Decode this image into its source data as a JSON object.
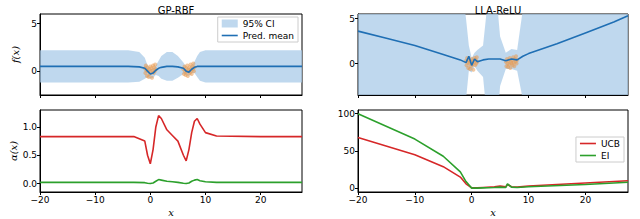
{
  "chart_data": [
    {
      "type": "line",
      "title": "GP-RBF",
      "ylabel": "f(x)",
      "xlim": [
        -20,
        27.5
      ],
      "xticks": [
        {
          "value": -20,
          "label": "−20"
        },
        {
          "value": -10,
          "label": "−10"
        },
        0,
        10,
        20
      ],
      "ylim": [
        -2.5,
        6
      ],
      "yticks": [
        0,
        5
      ],
      "grid": false,
      "tick_labels": "y",
      "legend": "upper right",
      "series": [
        {
          "name": "95% CI",
          "type": "band",
          "color": "#a9cbe8",
          "x": [
            -20,
            -10,
            -4,
            -2,
            -1,
            -0.5,
            0,
            0.5,
            1,
            1.5,
            2,
            3,
            4,
            5,
            6,
            6.5,
            7,
            7.5,
            8,
            8.5,
            9,
            10,
            12,
            20,
            27.5
          ],
          "lower": [
            -1.2,
            -1.2,
            -1.2,
            -1.1,
            -0.8,
            -0.6,
            -0.8,
            -0.7,
            -0.4,
            -0.5,
            -0.8,
            -1.0,
            -1.0,
            -0.7,
            -0.3,
            -0.4,
            -0.5,
            -0.2,
            -0.2,
            -0.6,
            -1.0,
            -1.2,
            -1.2,
            -1.2,
            -1.2
          ],
          "upper": [
            2.2,
            2.2,
            2.2,
            2.0,
            1.4,
            0.6,
            0.2,
            0.3,
            0.6,
            1.1,
            1.6,
            2.0,
            2.0,
            1.6,
            0.9,
            0.4,
            0.3,
            0.6,
            1.0,
            1.6,
            2.0,
            2.2,
            2.2,
            2.2,
            2.2
          ]
        },
        {
          "type": "scatter",
          "color": "#e89a52",
          "x": [
            -1.0,
            -0.9,
            -0.8,
            -0.7,
            -0.6,
            -0.5,
            -0.4,
            -0.3,
            -0.2,
            -0.1,
            0.0,
            0.1,
            0.2,
            0.3,
            0.4,
            0.5,
            0.6,
            0.7,
            0.8,
            0.9,
            1.0,
            6.0,
            6.1,
            6.2,
            6.3,
            6.4,
            6.5,
            6.6,
            6.7,
            6.8,
            6.9,
            7.0,
            7.1,
            7.2,
            7.3,
            7.4,
            7.5,
            7.6,
            7.7,
            7.8,
            7.9,
            8.0
          ],
          "values": [
            0.3,
            -0.2,
            0.6,
            0.1,
            -0.5,
            0.4,
            0.0,
            -0.6,
            0.2,
            -0.3,
            0.5,
            -0.1,
            0.3,
            -0.7,
            0.1,
            0.6,
            -0.2,
            0.4,
            0.0,
            0.7,
            0.2,
            0.2,
            -0.3,
            0.5,
            0.0,
            -0.4,
            0.3,
            -0.1,
            0.6,
            -0.5,
            0.2,
            0.0,
            0.4,
            -0.2,
            0.7,
            0.1,
            -0.3,
            0.5,
            0.2,
            0.8,
            0.0,
            0.4
          ]
        },
        {
          "name": "Pred. mean",
          "type": "line",
          "color": "#1f6fb4",
          "x": [
            -20,
            -10,
            -4,
            -2,
            -1,
            -0.5,
            0,
            0.5,
            1,
            1.5,
            2,
            3,
            4,
            5,
            6,
            6.5,
            7,
            7.5,
            8,
            8.5,
            9,
            10,
            12,
            20,
            27.5
          ],
          "values": [
            0.5,
            0.5,
            0.5,
            0.45,
            0.3,
            0.0,
            -0.3,
            -0.2,
            0.1,
            0.3,
            0.4,
            0.5,
            0.5,
            0.45,
            0.3,
            0.0,
            -0.1,
            0.2,
            0.4,
            0.5,
            0.5,
            0.5,
            0.5,
            0.5,
            0.5
          ]
        }
      ]
    },
    {
      "type": "line",
      "title": "LLA-ReLU",
      "xlim": [
        -20,
        27.5
      ],
      "xticks": [
        {
          "value": -20,
          "label": "−20"
        },
        {
          "value": -10,
          "label": "−10"
        },
        0,
        10,
        20
      ],
      "ylim": [
        -3.5,
        5.5
      ],
      "yticks": [
        0,
        5
      ],
      "grid": false,
      "tick_labels": "y",
      "series": [
        {
          "type": "band",
          "color": "#a9cbe8",
          "x": [
            -20,
            -15,
            -10,
            -5,
            -2,
            -1,
            -0.5,
            0,
            0.5,
            1,
            2,
            3,
            4,
            5,
            6,
            7,
            8,
            9,
            10,
            15,
            20,
            25,
            27.5
          ],
          "lower": [
            -35,
            -30,
            -25,
            -15,
            -8,
            -4,
            -0.8,
            -1.0,
            -0.3,
            -0.8,
            -1.5,
            -8,
            -10,
            -2.5,
            -0.6,
            -0.6,
            -0.8,
            -4,
            -10,
            -20,
            -30,
            -40,
            -45
          ],
          "upper": [
            40,
            35,
            30,
            20,
            10,
            5,
            2,
            0.6,
            1.2,
            1.5,
            2,
            8,
            10,
            3,
            1.2,
            1.6,
            1.5,
            6,
            12,
            25,
            35,
            45,
            50
          ]
        },
        {
          "type": "scatter",
          "color": "#e89a52",
          "x": [
            -1.0,
            -0.9,
            -0.8,
            -0.7,
            -0.6,
            -0.5,
            -0.4,
            -0.3,
            -0.2,
            -0.1,
            0.0,
            0.1,
            0.2,
            0.3,
            0.4,
            0.5,
            0.6,
            0.7,
            0.8,
            0.9,
            1.0,
            6.0,
            6.1,
            6.2,
            6.3,
            6.4,
            6.5,
            6.6,
            6.7,
            6.8,
            6.9,
            7.0,
            7.1,
            7.2,
            7.3,
            7.4,
            7.5,
            7.6,
            7.7,
            7.8,
            7.9,
            8.0
          ],
          "values": [
            0.3,
            -0.2,
            0.6,
            0.1,
            -0.5,
            0.4,
            0.0,
            -0.6,
            0.2,
            -0.3,
            0.5,
            -0.1,
            0.3,
            -0.7,
            0.1,
            0.6,
            -0.2,
            0.4,
            0.0,
            0.7,
            0.2,
            0.2,
            -0.3,
            0.5,
            0.0,
            -0.4,
            0.3,
            -0.1,
            0.6,
            -0.5,
            0.2,
            0.0,
            0.4,
            -0.2,
            0.7,
            0.1,
            -0.3,
            0.5,
            0.2,
            0.8,
            0.0,
            0.4
          ]
        },
        {
          "type": "line",
          "color": "#1f6fb4",
          "x": [
            -20,
            -15,
            -10,
            -5,
            -2,
            -1,
            -0.5,
            0,
            0.5,
            1,
            2,
            3,
            4,
            5,
            6,
            7,
            8,
            9,
            10,
            15,
            20,
            25,
            27.5
          ],
          "values": [
            3.6,
            2.8,
            2.0,
            1.0,
            0.4,
            0.1,
            0.8,
            -0.2,
            0.5,
            0.2,
            0.4,
            0.5,
            0.5,
            0.5,
            0.3,
            0.5,
            0.4,
            0.8,
            1.1,
            2.2,
            3.4,
            4.6,
            5.3
          ]
        }
      ]
    },
    {
      "type": "line",
      "xlabel": "x",
      "ylabel": "α(x)",
      "xlim": [
        -20,
        27.5
      ],
      "xticks": [
        {
          "value": -20,
          "label": "−20"
        },
        {
          "value": -10,
          "label": "−10"
        },
        0,
        10,
        20
      ],
      "ylim": [
        -0.15,
        1.3
      ],
      "yticks": [
        {
          "value": 0,
          "label": "0.0"
        },
        {
          "value": 0.5,
          "label": "0.5"
        },
        {
          "value": 1,
          "label": "1.0"
        }
      ],
      "grid": false,
      "series": [
        {
          "type": "line",
          "color": "#d62728",
          "x": [
            -20,
            -10,
            -3,
            -1,
            -0.5,
            0,
            0.5,
            1,
            1.5,
            2,
            3,
            4,
            5,
            6,
            6.5,
            7,
            7.5,
            8,
            8.5,
            9,
            10,
            12,
            20,
            27.5
          ],
          "values": [
            0.83,
            0.83,
            0.83,
            0.75,
            0.5,
            0.35,
            0.6,
            1.0,
            1.2,
            1.15,
            0.95,
            0.85,
            0.75,
            0.5,
            0.4,
            0.6,
            0.9,
            1.1,
            1.15,
            1.05,
            0.9,
            0.84,
            0.83,
            0.83
          ]
        },
        {
          "type": "line",
          "color": "#2ca02c",
          "x": [
            -20,
            -10,
            -3,
            -1,
            -0.5,
            0,
            0.5,
            1,
            1.5,
            2,
            3,
            4,
            5,
            6,
            6.5,
            7,
            7.5,
            8,
            8.5,
            9,
            10,
            12,
            20,
            27.5
          ],
          "values": [
            0.02,
            0.02,
            0.02,
            0.015,
            0.005,
            0.0,
            0.01,
            0.04,
            0.07,
            0.06,
            0.04,
            0.03,
            0.02,
            0.005,
            0.0,
            0.01,
            0.04,
            0.06,
            0.07,
            0.05,
            0.03,
            0.02,
            0.02,
            0.02
          ]
        }
      ]
    },
    {
      "type": "line",
      "xlabel": "x",
      "xlim": [
        -20,
        27.5
      ],
      "xticks": [
        {
          "value": -20,
          "label": "−20"
        },
        {
          "value": -10,
          "label": "−10"
        },
        0,
        10,
        20
      ],
      "ylim": [
        -5,
        105
      ],
      "yticks": [
        0,
        50,
        100
      ],
      "grid": false,
      "legend": "center right",
      "series": [
        {
          "name": "UCB",
          "type": "line",
          "color": "#d62728",
          "x": [
            -20,
            -10,
            -5,
            -2,
            -1,
            0,
            1,
            2,
            4,
            5,
            6,
            6.3,
            7,
            8,
            10,
            20,
            27.5
          ],
          "values": [
            68,
            45,
            29,
            15,
            6,
            0.5,
            0.5,
            1,
            2,
            3,
            2,
            5,
            2,
            1.5,
            3,
            7,
            10
          ]
        },
        {
          "name": "EI",
          "type": "line",
          "color": "#2ca02c",
          "x": [
            -20,
            -10,
            -5,
            -2,
            -1,
            0,
            1,
            2,
            4,
            5,
            6,
            6.3,
            7,
            8,
            10,
            20,
            27.5
          ],
          "values": [
            100,
            66,
            43,
            22,
            9,
            0.2,
            0.2,
            0.5,
            1,
            1.5,
            1,
            6,
            1.5,
            1,
            2,
            5,
            8
          ]
        }
      ]
    }
  ]
}
